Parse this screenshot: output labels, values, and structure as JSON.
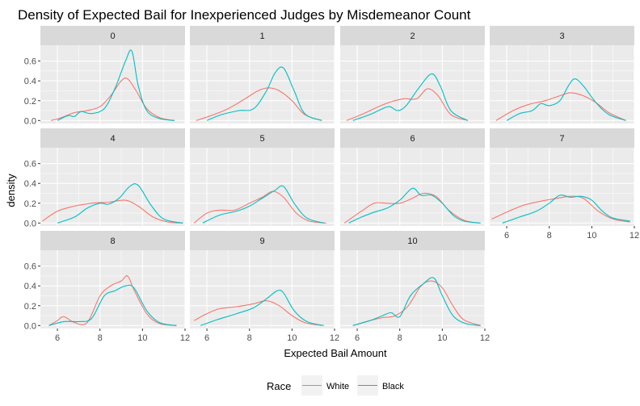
{
  "chart_data": {
    "type": "line",
    "title": "Density of Expected Bail for Inexperienced Judges by Misdemeanor Count",
    "xlabel": "Expected Bail Amount",
    "ylabel": "density",
    "xlim": [
      5.2,
      12.0
    ],
    "ylim": [
      -0.03,
      0.76
    ],
    "x_ticks": [
      6,
      8,
      10,
      12
    ],
    "y_ticks": [
      0.0,
      0.2,
      0.4,
      0.6
    ],
    "x_tick_labels": [
      "6",
      "8",
      "10",
      "12"
    ],
    "y_tick_labels": [
      "0.0",
      "0.2",
      "0.4",
      "0.6"
    ],
    "grid": true,
    "legend": {
      "title": "Race",
      "position": "bottom",
      "entries": [
        "White",
        "Black"
      ]
    },
    "colors": {
      "White": "#F8766D",
      "Black": "#00BFC4"
    },
    "facets": [
      {
        "label": "0",
        "series": [
          {
            "name": "White",
            "x": [
              5.7,
              6.2,
              6.8,
              7.4,
              8.0,
              8.5,
              9.0,
              9.3,
              9.7,
              10.2,
              10.8,
              11.5
            ],
            "values": [
              0.0,
              0.03,
              0.08,
              0.1,
              0.14,
              0.25,
              0.4,
              0.42,
              0.3,
              0.12,
              0.03,
              0.0
            ]
          },
          {
            "name": "Black",
            "x": [
              6.0,
              6.5,
              6.8,
              7.1,
              7.6,
              8.2,
              8.7,
              9.2,
              9.5,
              9.8,
              10.2,
              10.8,
              11.5
            ],
            "values": [
              0.0,
              0.05,
              0.04,
              0.09,
              0.07,
              0.12,
              0.32,
              0.6,
              0.7,
              0.35,
              0.1,
              0.02,
              0.0
            ]
          }
        ]
      },
      {
        "label": "1",
        "series": [
          {
            "name": "White",
            "x": [
              5.5,
              6.2,
              7.0,
              7.8,
              8.4,
              8.9,
              9.4,
              10.0,
              10.6,
              11.4
            ],
            "values": [
              0.0,
              0.05,
              0.12,
              0.22,
              0.3,
              0.33,
              0.3,
              0.2,
              0.06,
              0.0
            ]
          },
          {
            "name": "Black",
            "x": [
              6.0,
              6.7,
              7.5,
              8.2,
              8.8,
              9.2,
              9.6,
              10.1,
              10.6,
              11.4
            ],
            "values": [
              0.0,
              0.06,
              0.1,
              0.12,
              0.3,
              0.48,
              0.53,
              0.3,
              0.07,
              0.0
            ]
          }
        ]
      },
      {
        "label": "2",
        "series": [
          {
            "name": "White",
            "x": [
              5.5,
              6.2,
              7.0,
              7.6,
              8.2,
              8.8,
              9.3,
              9.8,
              10.4,
              11.2
            ],
            "values": [
              0.0,
              0.06,
              0.14,
              0.19,
              0.22,
              0.22,
              0.32,
              0.25,
              0.06,
              0.0
            ]
          },
          {
            "name": "Black",
            "x": [
              5.8,
              6.6,
              7.0,
              7.5,
              7.9,
              8.3,
              8.9,
              9.5,
              9.9,
              10.4,
              11.2
            ],
            "values": [
              0.0,
              0.06,
              0.1,
              0.14,
              0.1,
              0.15,
              0.33,
              0.47,
              0.35,
              0.1,
              0.0
            ]
          }
        ]
      },
      {
        "label": "3",
        "series": [
          {
            "name": "White",
            "x": [
              5.5,
              6.3,
              7.0,
              7.8,
              8.5,
              9.0,
              9.6,
              10.2,
              10.8,
              11.6
            ],
            "values": [
              0.0,
              0.1,
              0.16,
              0.2,
              0.25,
              0.28,
              0.25,
              0.18,
              0.08,
              0.0
            ]
          },
          {
            "name": "Black",
            "x": [
              6.0,
              6.6,
              7.2,
              7.6,
              8.0,
              8.5,
              8.9,
              9.2,
              9.6,
              10.2,
              10.8,
              11.6
            ],
            "values": [
              0.0,
              0.07,
              0.1,
              0.17,
              0.15,
              0.2,
              0.35,
              0.42,
              0.35,
              0.18,
              0.06,
              0.0
            ]
          }
        ]
      },
      {
        "label": "4",
        "series": [
          {
            "name": "White",
            "x": [
              5.3,
              6.0,
              6.8,
              7.6,
              8.4,
              9.2,
              9.8,
              10.5,
              11.2,
              11.9
            ],
            "values": [
              0.02,
              0.12,
              0.17,
              0.2,
              0.21,
              0.23,
              0.17,
              0.06,
              0.01,
              0.0
            ]
          },
          {
            "name": "Black",
            "x": [
              6.0,
              6.8,
              7.4,
              8.0,
              8.4,
              8.9,
              9.4,
              9.8,
              10.4,
              11.0,
              11.9
            ],
            "values": [
              0.0,
              0.06,
              0.15,
              0.2,
              0.19,
              0.25,
              0.37,
              0.38,
              0.18,
              0.04,
              0.0
            ]
          }
        ]
      },
      {
        "label": "5",
        "series": [
          {
            "name": "White",
            "x": [
              5.4,
              6.0,
              6.6,
              7.3,
              8.0,
              8.6,
              9.1,
              9.6,
              10.2,
              10.8,
              11.6
            ],
            "values": [
              0.0,
              0.1,
              0.13,
              0.13,
              0.2,
              0.26,
              0.32,
              0.26,
              0.1,
              0.02,
              0.0
            ]
          },
          {
            "name": "Black",
            "x": [
              5.8,
              6.6,
              7.4,
              8.0,
              8.6,
              9.2,
              9.6,
              10.1,
              10.7,
              11.5
            ],
            "values": [
              0.0,
              0.08,
              0.12,
              0.17,
              0.25,
              0.33,
              0.37,
              0.2,
              0.05,
              0.0
            ]
          }
        ]
      },
      {
        "label": "6",
        "series": [
          {
            "name": "White",
            "x": [
              5.4,
              6.2,
              6.8,
              7.4,
              8.0,
              8.6,
              9.1,
              9.7,
              10.3,
              11.0,
              11.7
            ],
            "values": [
              0.0,
              0.12,
              0.2,
              0.2,
              0.2,
              0.25,
              0.3,
              0.27,
              0.13,
              0.03,
              0.0
            ]
          },
          {
            "name": "Black",
            "x": [
              5.6,
              6.2,
              6.8,
              7.4,
              8.0,
              8.6,
              9.0,
              9.5,
              10.0,
              10.5,
              11.0,
              11.8
            ],
            "values": [
              0.0,
              0.06,
              0.11,
              0.15,
              0.23,
              0.35,
              0.28,
              0.28,
              0.2,
              0.08,
              0.02,
              0.0
            ]
          }
        ]
      },
      {
        "label": "7",
        "series": [
          {
            "name": "White",
            "x": [
              5.3,
              6.0,
              6.8,
              7.6,
              8.4,
              9.0,
              9.6,
              10.3,
              11.0,
              11.8
            ],
            "values": [
              0.04,
              0.11,
              0.18,
              0.22,
              0.25,
              0.27,
              0.25,
              0.12,
              0.04,
              0.01
            ]
          },
          {
            "name": "Black",
            "x": [
              5.8,
              6.6,
              7.4,
              8.0,
              8.5,
              9.0,
              9.5,
              10.0,
              10.5,
              11.0,
              11.8
            ],
            "values": [
              0.0,
              0.06,
              0.12,
              0.2,
              0.28,
              0.26,
              0.27,
              0.23,
              0.12,
              0.05,
              0.02
            ]
          }
        ]
      },
      {
        "label": "8",
        "series": [
          {
            "name": "White",
            "x": [
              5.6,
              6.0,
              6.3,
              6.8,
              7.4,
              8.0,
              8.5,
              9.0,
              9.3,
              9.6,
              10.2,
              10.8,
              11.6
            ],
            "values": [
              0.0,
              0.05,
              0.09,
              0.03,
              0.03,
              0.3,
              0.4,
              0.45,
              0.5,
              0.36,
              0.12,
              0.02,
              0.0
            ]
          },
          {
            "name": "Black",
            "x": [
              5.6,
              6.3,
              7.0,
              7.6,
              8.2,
              8.7,
              9.2,
              9.6,
              10.2,
              10.8,
              11.6
            ],
            "values": [
              0.0,
              0.04,
              0.04,
              0.07,
              0.3,
              0.35,
              0.4,
              0.38,
              0.15,
              0.03,
              0.0
            ]
          }
        ]
      },
      {
        "label": "9",
        "series": [
          {
            "name": "White",
            "x": [
              5.4,
              6.0,
              6.6,
              7.4,
              8.2,
              8.8,
              9.4,
              10.0,
              10.6,
              11.4
            ],
            "values": [
              0.05,
              0.12,
              0.17,
              0.19,
              0.22,
              0.25,
              0.2,
              0.1,
              0.03,
              0.0
            ]
          },
          {
            "name": "Black",
            "x": [
              5.7,
              6.5,
              7.4,
              8.2,
              8.8,
              9.3,
              9.6,
              10.1,
              10.7,
              11.5
            ],
            "values": [
              0.0,
              0.06,
              0.12,
              0.18,
              0.27,
              0.35,
              0.33,
              0.15,
              0.04,
              0.0
            ]
          }
        ]
      },
      {
        "label": "10",
        "series": [
          {
            "name": "White",
            "x": [
              5.8,
              6.6,
              7.2,
              7.8,
              8.4,
              9.0,
              9.5,
              10.0,
              10.5,
              11.0,
              11.8
            ],
            "values": [
              0.0,
              0.05,
              0.08,
              0.1,
              0.2,
              0.4,
              0.45,
              0.38,
              0.2,
              0.06,
              0.0
            ]
          },
          {
            "name": "Black",
            "x": [
              5.8,
              6.6,
              7.2,
              7.6,
              8.0,
              8.5,
              9.1,
              9.6,
              10.0,
              10.5,
              11.1,
              11.8
            ],
            "values": [
              0.0,
              0.05,
              0.1,
              0.13,
              0.09,
              0.3,
              0.42,
              0.48,
              0.3,
              0.1,
              0.02,
              0.0
            ]
          }
        ]
      }
    ]
  }
}
